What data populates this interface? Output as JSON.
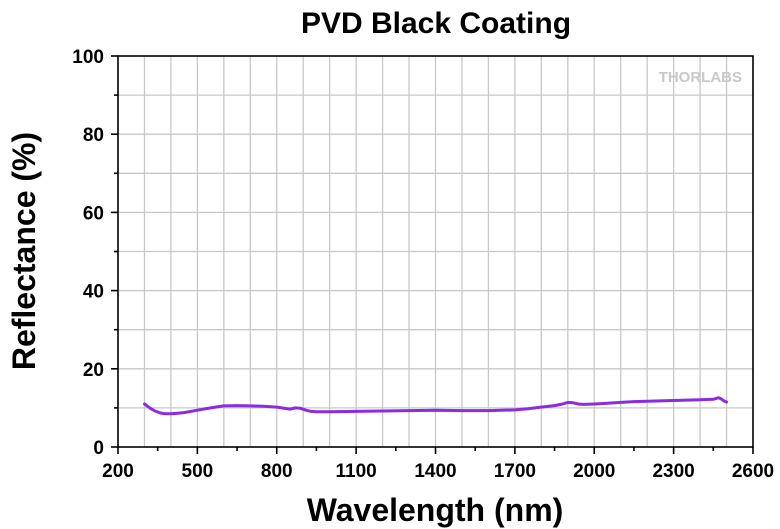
{
  "chart_data": {
    "type": "line",
    "title": "PVD Black Coating",
    "xlabel": "Wavelength (nm)",
    "ylabel": "Reflectance (%)",
    "xlim": [
      200,
      2600
    ],
    "ylim": [
      0,
      100
    ],
    "x_ticks": [
      200,
      500,
      800,
      1100,
      1400,
      1700,
      2000,
      2300,
      2600
    ],
    "y_ticks": [
      0,
      20,
      40,
      60,
      80,
      100
    ],
    "grid": true,
    "watermark": "THORLABS",
    "series": [
      {
        "color": "#8b2be2",
        "x": [
          300,
          320,
          340,
          360,
          380,
          400,
          420,
          450,
          500,
          550,
          600,
          650,
          700,
          750,
          800,
          850,
          870,
          890,
          910,
          930,
          950,
          1000,
          1100,
          1200,
          1300,
          1400,
          1500,
          1600,
          1700,
          1750,
          1800,
          1850,
          1880,
          1900,
          1920,
          1940,
          1960,
          2000,
          2050,
          2100,
          2150,
          2200,
          2250,
          2300,
          2350,
          2400,
          2450,
          2470,
          2480,
          2490,
          2500
        ],
        "y": [
          11.0,
          10.0,
          9.2,
          8.7,
          8.5,
          8.5,
          8.6,
          8.8,
          9.4,
          10.0,
          10.5,
          10.6,
          10.5,
          10.4,
          10.2,
          9.7,
          10.0,
          9.9,
          9.4,
          9.1,
          9.0,
          9.0,
          9.1,
          9.2,
          9.3,
          9.4,
          9.3,
          9.3,
          9.5,
          9.8,
          10.2,
          10.6,
          11.0,
          11.4,
          11.3,
          11.0,
          10.9,
          11.0,
          11.2,
          11.4,
          11.6,
          11.7,
          11.8,
          11.9,
          12.0,
          12.1,
          12.2,
          12.6,
          12.3,
          11.8,
          11.5
        ]
      }
    ]
  }
}
